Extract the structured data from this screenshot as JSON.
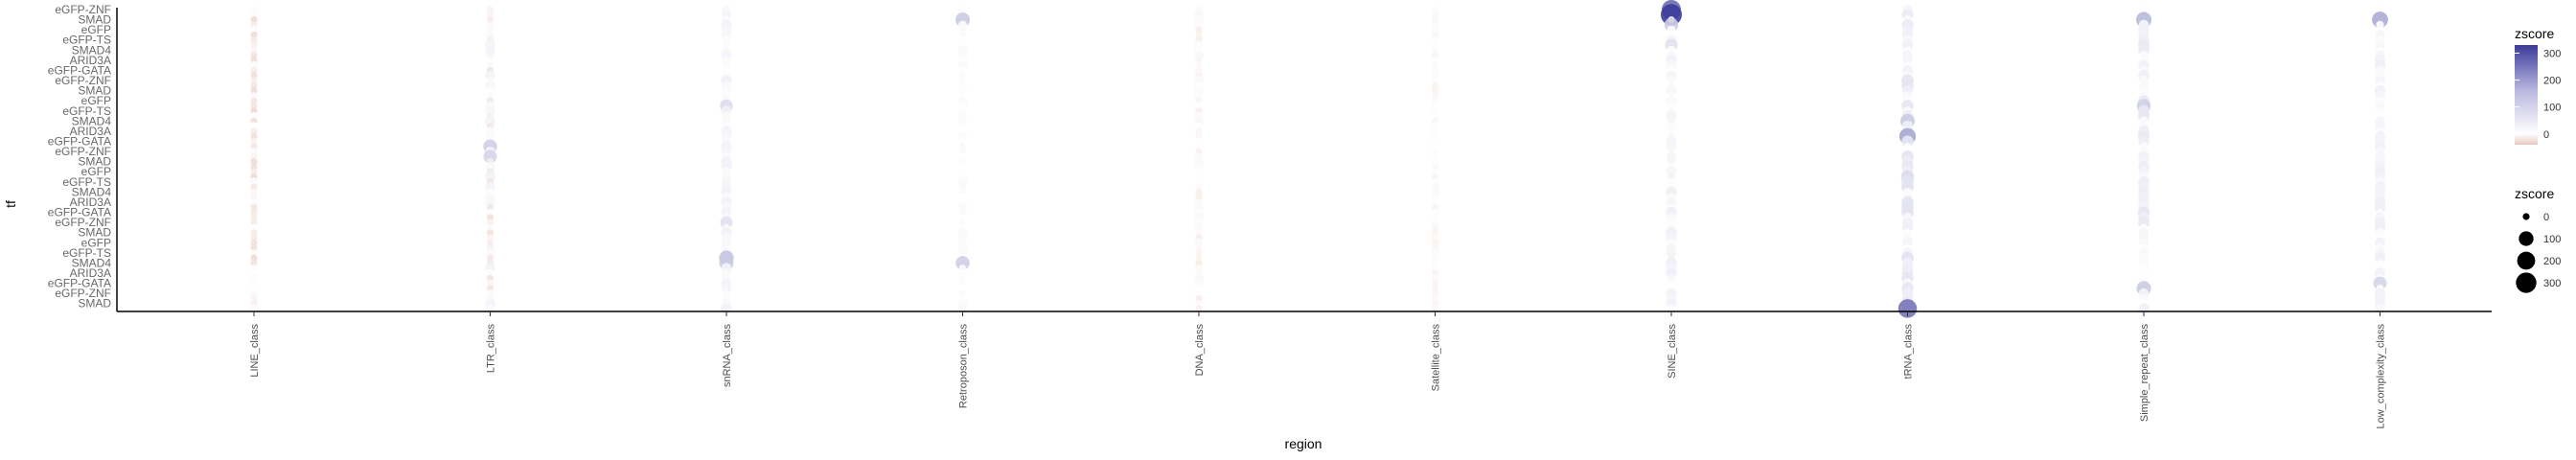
{
  "chart_data": {
    "type": "scatter",
    "title": "",
    "xlabel": "region",
    "ylabel": "tf",
    "categories": [
      "LINE_class",
      "LTR_class",
      "snRNA_class",
      "Retroposon_class",
      "DNA_class",
      "Satellite_class",
      "SINE_class",
      "tRNA_class",
      "Simple_repeat_class",
      "Low_complexity_class"
    ],
    "tf_labels_visible": [
      "eGFP-ZNF",
      "SMAD",
      "eGFP",
      "eGFP-TS",
      "SMAD4",
      "ARID3A",
      "eGFP-GATA"
    ],
    "tf_row_count": 60,
    "grid": false,
    "legend_position": "right",
    "color_legend": {
      "title": "zscore",
      "ticks": [
        0,
        100,
        200,
        300
      ],
      "low_color": "#e7c9c0",
      "mid_color": "#ffffff",
      "high_color": "#3b3b9a",
      "domain": [
        -40,
        330
      ]
    },
    "size_legend": {
      "title": "zscore",
      "values": [
        0,
        100,
        200,
        300
      ]
    },
    "highlights": [
      {
        "region": "SINE_class",
        "row": 1,
        "z": 330
      },
      {
        "region": "SINE_class",
        "row": 0,
        "z": 250
      },
      {
        "region": "tRNA_class",
        "row": 59,
        "z": 230
      },
      {
        "region": "tRNA_class",
        "row": 25,
        "z": 150
      },
      {
        "region": "Low_complexity_class",
        "row": 2,
        "z": 140
      },
      {
        "region": "Simple_repeat_class",
        "row": 2,
        "z": 120
      },
      {
        "region": "Retroposon_class",
        "row": 2,
        "z": 90
      },
      {
        "region": "Retroposon_class",
        "row": 50,
        "z": 80
      },
      {
        "region": "snRNA_class",
        "row": 49,
        "z": 100
      },
      {
        "region": "snRNA_class",
        "row": 50,
        "z": 90
      },
      {
        "region": "LTR_class",
        "row": 27,
        "z": 80
      },
      {
        "region": "LTR_class",
        "row": 29,
        "z": 70
      },
      {
        "region": "tRNA_class",
        "row": 22,
        "z": 90
      },
      {
        "region": "tRNA_class",
        "row": 33,
        "z": 60
      },
      {
        "region": "Simple_repeat_class",
        "row": 55,
        "z": 90
      },
      {
        "region": "Simple_repeat_class",
        "row": 19,
        "z": 80
      },
      {
        "region": "Low_complexity_class",
        "row": 54,
        "z": 70
      },
      {
        "region": "snRNA_class",
        "row": 19,
        "z": 60
      },
      {
        "region": "snRNA_class",
        "row": 42,
        "z": 50
      },
      {
        "region": "SINE_class",
        "row": 3,
        "z": 80
      },
      {
        "region": "SINE_class",
        "row": 7,
        "z": 50
      }
    ]
  }
}
